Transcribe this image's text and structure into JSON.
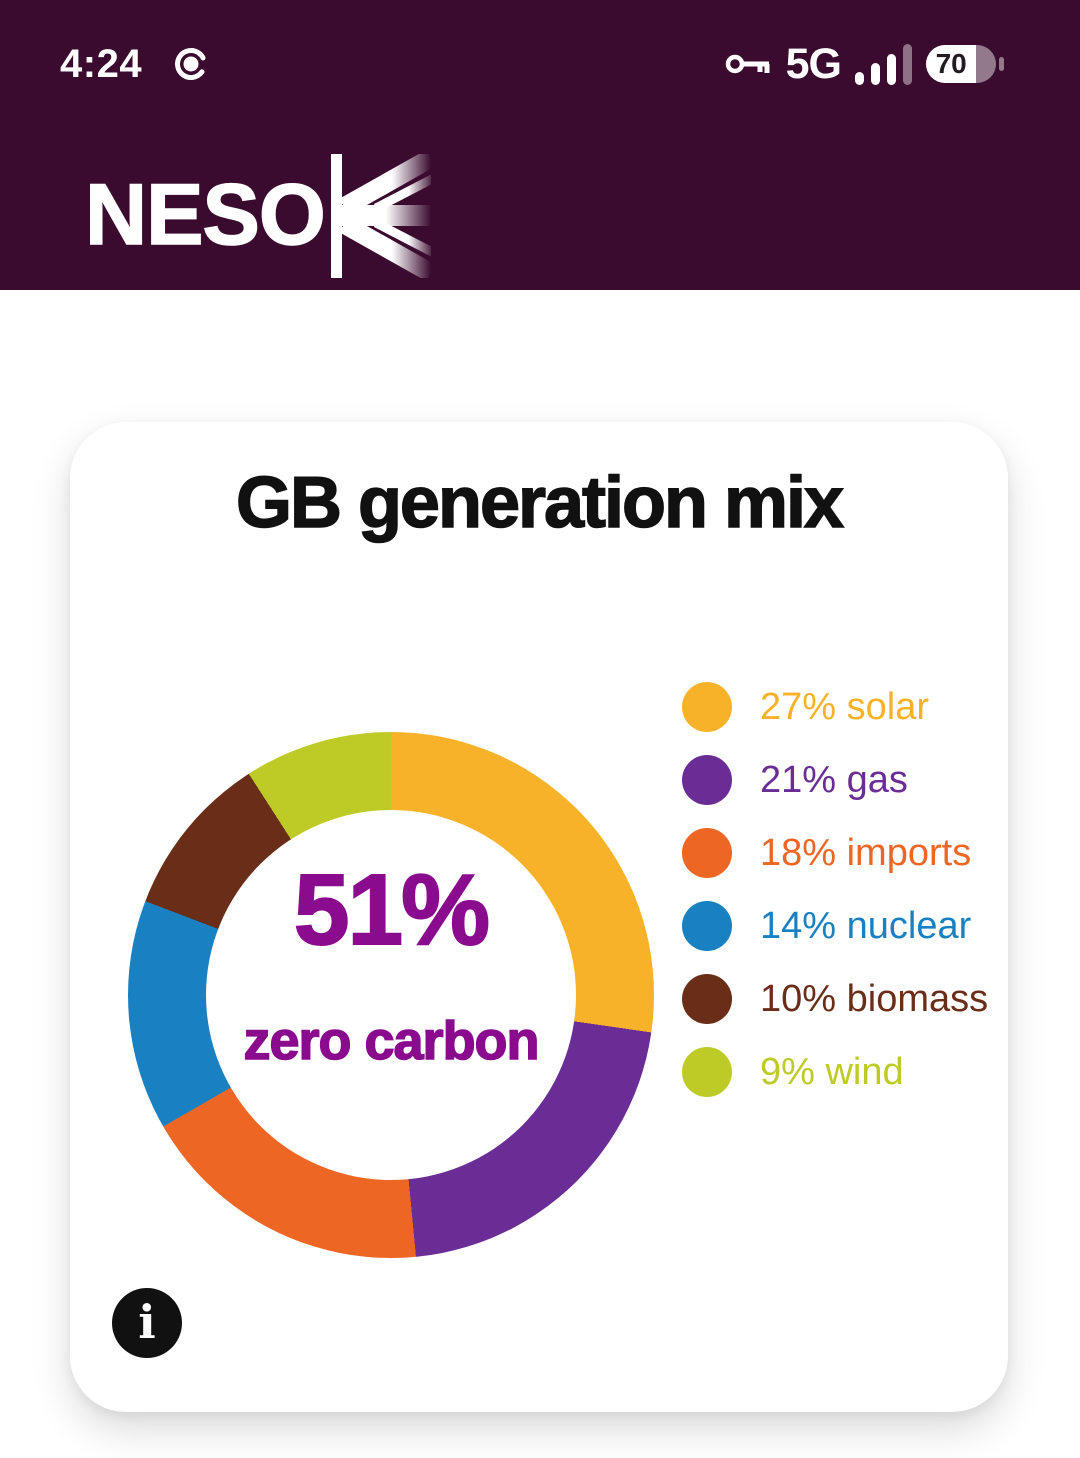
{
  "status_bar": {
    "time": "4:24",
    "notification_icon": "record-dot",
    "vpn_icon": "key",
    "network": "5G",
    "signal_bars_filled": 3,
    "signal_bars_total": 4,
    "battery_percent": "70"
  },
  "header": {
    "logo_text": "NESO",
    "flag_icon": "union-jack-half"
  },
  "card": {
    "title": "GB generation mix",
    "info_label": "i"
  },
  "chart_data": {
    "type": "pie",
    "subtype": "donut",
    "title": "GB generation mix",
    "center": {
      "value": "51%",
      "label": "zero carbon",
      "color": "#8A0B8D"
    },
    "series": [
      {
        "name": "solar",
        "value": 27,
        "color": "#F8B229"
      },
      {
        "name": "gas",
        "value": 21,
        "color": "#6A2C95"
      },
      {
        "name": "imports",
        "value": 18,
        "color": "#EE6623"
      },
      {
        "name": "nuclear",
        "value": 14,
        "color": "#1980C2"
      },
      {
        "name": "biomass",
        "value": 10,
        "color": "#6A2E18"
      },
      {
        "name": "wind",
        "value": 9,
        "color": "#BECB26"
      }
    ],
    "legend_position": "right",
    "legend_label_format": "{value}% {name}",
    "start_angle_deg": 0,
    "clockwise": true
  },
  "colors": {
    "header_bg": "#3B0B2F",
    "page_bg": "#FFFFFF",
    "card_bg": "#FFFFFF",
    "title_color": "#111111"
  }
}
